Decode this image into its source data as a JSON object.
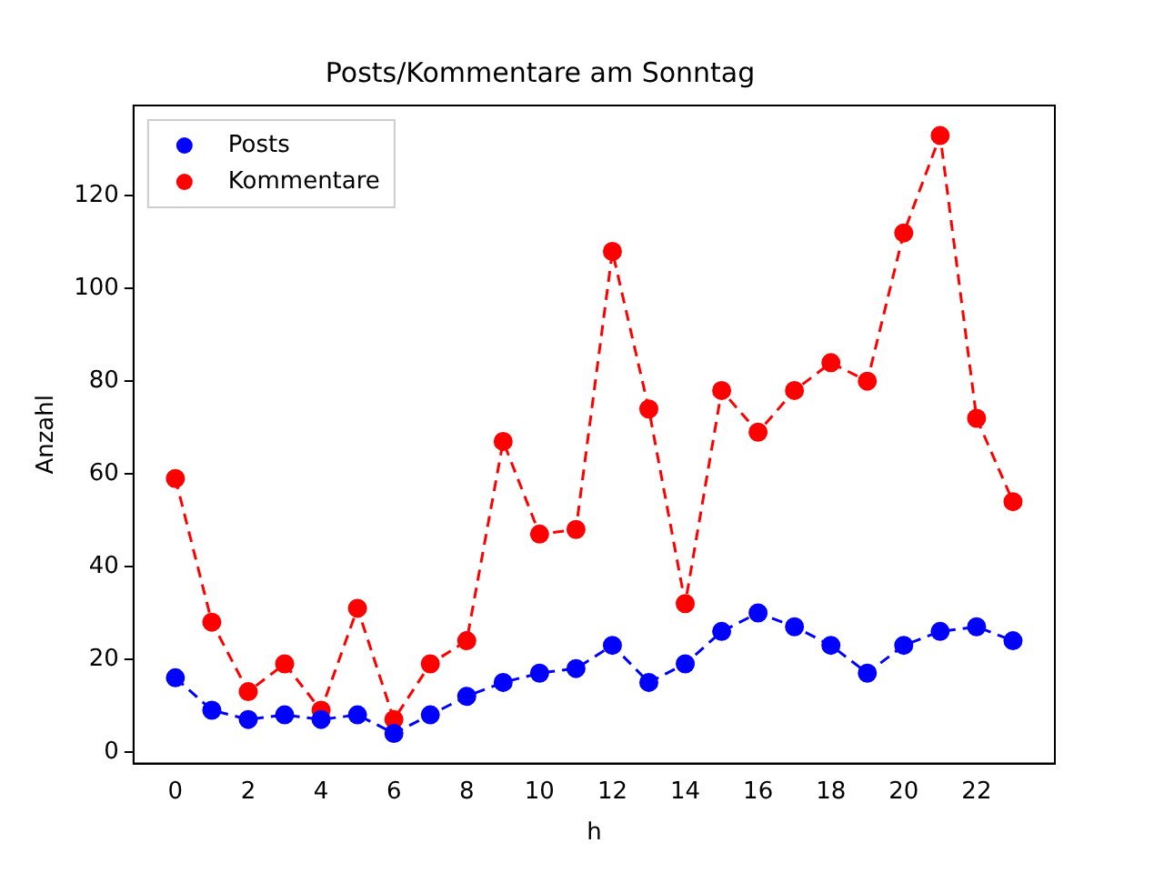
{
  "chart_data": {
    "type": "line",
    "title": "Posts/Kommentare am Sonntag",
    "xlabel": "h",
    "ylabel": "Anzahl",
    "x": [
      0,
      1,
      2,
      3,
      4,
      5,
      6,
      7,
      8,
      9,
      10,
      11,
      12,
      13,
      14,
      15,
      16,
      17,
      18,
      19,
      20,
      21,
      22,
      23
    ],
    "series": [
      {
        "name": "Posts",
        "color": "#0000ff",
        "values": [
          16,
          9,
          7,
          8,
          7,
          8,
          4,
          8,
          12,
          15,
          17,
          18,
          23,
          15,
          19,
          26,
          30,
          27,
          23,
          17,
          23,
          26,
          27,
          24
        ]
      },
      {
        "name": "Kommentare",
        "color": "#ff0000",
        "values": [
          59,
          28,
          13,
          19,
          9,
          31,
          7,
          19,
          24,
          67,
          47,
          48,
          108,
          74,
          32,
          78,
          69,
          78,
          84,
          80,
          112,
          133,
          72,
          54
        ]
      }
    ],
    "xlim": [
      -1.15,
      24.15
    ],
    "xticks": [
      0,
      2,
      4,
      6,
      8,
      10,
      12,
      14,
      16,
      18,
      20,
      22
    ],
    "ylim": [
      -2.5,
      139.5
    ],
    "yticks": [
      0,
      20,
      40,
      60,
      80,
      100,
      120
    ],
    "grid": false,
    "legend": "top left",
    "marker": "circle",
    "line_style": "dashed"
  }
}
